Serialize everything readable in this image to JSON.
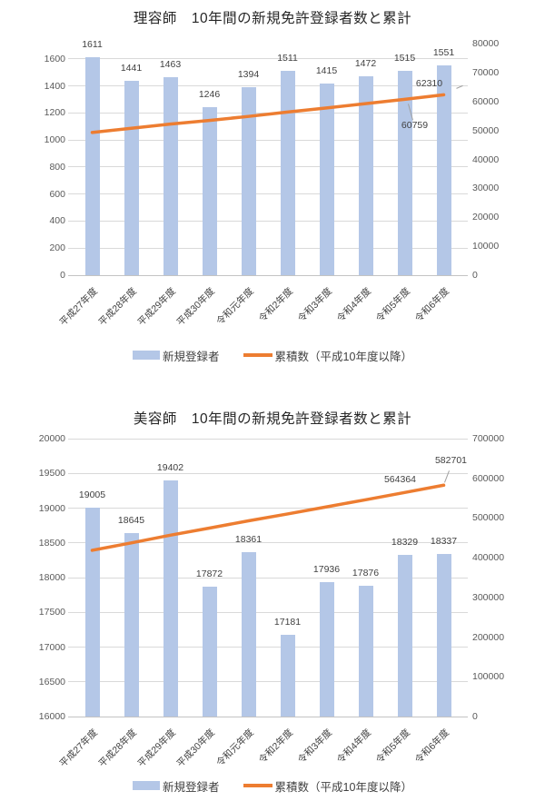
{
  "page": {
    "background": "#ffffff"
  },
  "chart_data": [
    {
      "type": "combo_bar_line",
      "title": "理容師　10年間の新規免許登録者数と累計",
      "categories": [
        "平成27年度",
        "平成28年度",
        "平成29年度",
        "平成30年度",
        "令和元年度",
        "令和2年度",
        "令和3年度",
        "令和4年度",
        "令和5年度",
        "令和6年度"
      ],
      "series": [
        {
          "name": "新規登録者",
          "chart_type": "bar",
          "axis": "left",
          "color": "#b4c7e7",
          "values": [
            1611,
            1441,
            1463,
            1246,
            1394,
            1511,
            1415,
            1472,
            1515,
            1551
          ],
          "data_labels": true
        },
        {
          "name": "累積数（平成10年度以降）",
          "chart_type": "line",
          "axis": "right",
          "color": "#ed7d31",
          "values": [
            49302,
            50743,
            52206,
            53452,
            54846,
            56357,
            57772,
            59244,
            60759,
            62310
          ],
          "labeled_points": [
            {
              "index": 8,
              "label": "60759"
            },
            {
              "index": 9,
              "label": "62310"
            }
          ]
        }
      ],
      "left_axis": {
        "min": 0,
        "max": 1600,
        "step": 200,
        "ticks": [
          0,
          200,
          400,
          600,
          800,
          1000,
          1200,
          1400,
          1600
        ]
      },
      "right_axis": {
        "min": 0,
        "max": 80000,
        "step": 10000,
        "ticks": [
          0,
          10000,
          20000,
          30000,
          40000,
          50000,
          60000,
          70000,
          80000
        ]
      },
      "grid": true,
      "legend_position": "bottom"
    },
    {
      "type": "combo_bar_line",
      "title": "美容師　10年間の新規免許登録者数と累計",
      "categories": [
        "平成27年度",
        "平成28年度",
        "平成29年度",
        "平成30年度",
        "令和元年度",
        "令和2年度",
        "令和3年度",
        "令和4年度",
        "令和5年度",
        "令和6年度"
      ],
      "series": [
        {
          "name": "新規登録者",
          "chart_type": "bar",
          "axis": "left",
          "color": "#b4c7e7",
          "values": [
            19005,
            18645,
            19402,
            17872,
            18361,
            17181,
            17936,
            17876,
            18329,
            18337
          ],
          "data_labels": true
        },
        {
          "name": "累積数（平成10年度以降）",
          "chart_type": "line",
          "axis": "right",
          "color": "#ed7d31",
          "values": [
            418762,
            437407,
            456809,
            474681,
            493042,
            510223,
            528159,
            546035,
            564364,
            582701
          ],
          "labeled_points": [
            {
              "index": 8,
              "label": "564364"
            },
            {
              "index": 9,
              "label": "582701"
            }
          ]
        }
      ],
      "left_axis": {
        "min": 16000,
        "max": 20000,
        "step": 500,
        "ticks": [
          16000,
          16500,
          17000,
          17500,
          18000,
          18500,
          19000,
          19500,
          20000
        ]
      },
      "right_axis": {
        "min": 0,
        "max": 700000,
        "step": 100000,
        "ticks": [
          0,
          100000,
          200000,
          300000,
          400000,
          500000,
          600000,
          700000
        ]
      },
      "grid": true,
      "legend_position": "bottom"
    }
  ]
}
